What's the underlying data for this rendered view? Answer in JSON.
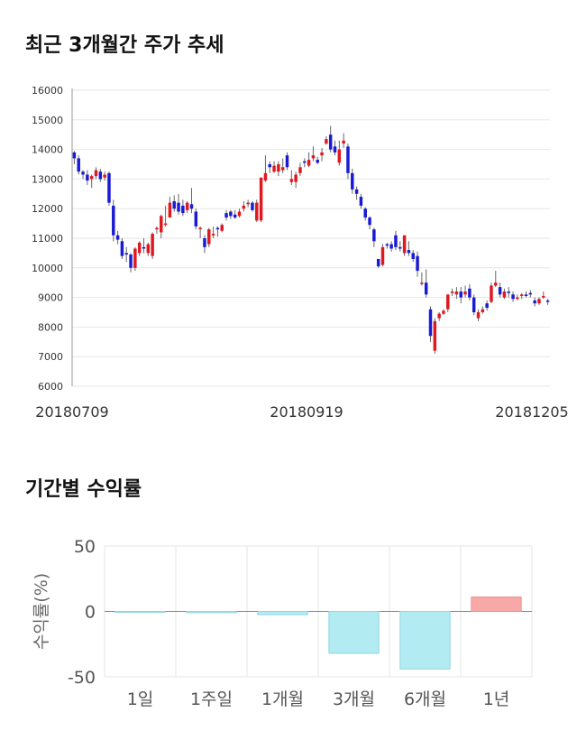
{
  "sections": {
    "price_title": "최근 3개월간 주가 추세",
    "returns_title": "기간별 수익률"
  },
  "colors": {
    "up": "#e0181f",
    "down": "#1a1ad6",
    "positive_bar": "#f9a8a8",
    "negative_bar": "#b2ebf2",
    "negative_bar_stroke": "#8fd6e3",
    "wick": "#666666",
    "grid": "#e6e6e6"
  },
  "chart_data": [
    {
      "type": "candlestick",
      "title": "최근 3개월간 주가 추세",
      "ylim": [
        6000,
        16000
      ],
      "yticks": [
        "6000",
        "7000",
        "8000",
        "9000",
        "10000",
        "11000",
        "12000",
        "13000",
        "14000",
        "15000",
        "16000"
      ],
      "xticks": [
        "20180709",
        "20180919",
        "20181205"
      ],
      "grid": true,
      "candles": [
        [
          13900,
          13950,
          13500,
          13700
        ],
        [
          13700,
          13800,
          13150,
          13250
        ],
        [
          13250,
          13300,
          13000,
          13150
        ],
        [
          13150,
          13300,
          12800,
          12950
        ],
        [
          13000,
          13150,
          12700,
          13100
        ],
        [
          13100,
          13400,
          13000,
          13300
        ],
        [
          13250,
          13350,
          12900,
          13000
        ],
        [
          13050,
          13250,
          12950,
          13150
        ],
        [
          13200,
          13250,
          12100,
          12200
        ],
        [
          12100,
          12300,
          10900,
          11100
        ],
        [
          11100,
          11250,
          10800,
          10950
        ],
        [
          10900,
          11000,
          10300,
          10400
        ],
        [
          10500,
          10700,
          10200,
          10450
        ],
        [
          10450,
          10500,
          9850,
          10000
        ],
        [
          10000,
          10700,
          9900,
          10650
        ],
        [
          10500,
          10900,
          10400,
          10850
        ],
        [
          10700,
          11000,
          10500,
          10650
        ],
        [
          10500,
          10850,
          10400,
          10800
        ],
        [
          10400,
          11200,
          10300,
          11150
        ],
        [
          11300,
          11400,
          11150,
          11350
        ],
        [
          11200,
          11800,
          11000,
          11750
        ],
        [
          11450,
          12100,
          11400,
          11500
        ],
        [
          11700,
          12400,
          11700,
          12200
        ],
        [
          12250,
          12450,
          11900,
          12000
        ],
        [
          12200,
          12500,
          11800,
          11900
        ],
        [
          12100,
          12300,
          11750,
          11850
        ],
        [
          11950,
          12250,
          11850,
          12200
        ],
        [
          12150,
          12700,
          11850,
          12000
        ],
        [
          11900,
          12000,
          11300,
          11400
        ],
        [
          11350,
          11400,
          11000,
          11350
        ],
        [
          11000,
          11100,
          10500,
          10700
        ],
        [
          10800,
          11350,
          10700,
          11300
        ],
        [
          11100,
          11400,
          11000,
          11150
        ],
        [
          11350,
          11400,
          11050,
          11300
        ],
        [
          11250,
          11500,
          11200,
          11450
        ],
        [
          11850,
          11950,
          11600,
          11700
        ],
        [
          11900,
          11950,
          11650,
          11750
        ],
        [
          11800,
          11950,
          11650,
          11700
        ],
        [
          11750,
          12000,
          11700,
          11900
        ],
        [
          12000,
          12250,
          11900,
          12100
        ],
        [
          12150,
          12300,
          12050,
          12200
        ],
        [
          12200,
          12250,
          11900,
          11950
        ],
        [
          11600,
          12300,
          11550,
          12200
        ],
        [
          11600,
          13050,
          11550,
          13050
        ],
        [
          12950,
          13800,
          12900,
          13200
        ],
        [
          13500,
          13600,
          13200,
          13400
        ],
        [
          13250,
          13600,
          13200,
          13450
        ],
        [
          13250,
          13600,
          13100,
          13500
        ],
        [
          13300,
          13700,
          13200,
          13400
        ],
        [
          13800,
          13900,
          13300,
          13400
        ],
        [
          12900,
          13300,
          12800,
          13000
        ],
        [
          12900,
          13250,
          12700,
          13150
        ],
        [
          13200,
          13550,
          13100,
          13400
        ],
        [
          13600,
          13700,
          13400,
          13550
        ],
        [
          13450,
          13900,
          13400,
          13650
        ],
        [
          13700,
          14100,
          13600,
          13800
        ],
        [
          13650,
          13750,
          13500,
          13550
        ],
        [
          13800,
          14050,
          13600,
          13900
        ],
        [
          14200,
          14450,
          14150,
          14350
        ],
        [
          14500,
          14800,
          13900,
          14000
        ],
        [
          14100,
          14300,
          13800,
          13900
        ],
        [
          13550,
          14300,
          13450,
          14000
        ],
        [
          14200,
          14550,
          14050,
          14300
        ],
        [
          14100,
          14200,
          13000,
          13200
        ],
        [
          13200,
          13350,
          12500,
          12650
        ],
        [
          12650,
          12750,
          12300,
          12500
        ],
        [
          12400,
          12500,
          12000,
          12100
        ],
        [
          12000,
          12050,
          11600,
          11700
        ],
        [
          11700,
          11750,
          11300,
          11450
        ],
        [
          11300,
          11350,
          10700,
          10900
        ],
        [
          10300,
          10300,
          10000,
          10050
        ],
        [
          10100,
          10800,
          10050,
          10700
        ],
        [
          10800,
          10850,
          10650,
          10750
        ],
        [
          10800,
          10900,
          10550,
          10650
        ],
        [
          11100,
          11250,
          10600,
          10700
        ],
        [
          10700,
          10900,
          10550,
          10650
        ],
        [
          10500,
          11100,
          10400,
          11100
        ],
        [
          10600,
          10900,
          10400,
          10500
        ],
        [
          10500,
          10600,
          10200,
          10300
        ],
        [
          10400,
          10550,
          9700,
          9900
        ],
        [
          9500,
          9850,
          9400,
          9500
        ],
        [
          9500,
          9950,
          9000,
          9100
        ],
        [
          8600,
          8700,
          7500,
          7700
        ],
        [
          7200,
          8300,
          7100,
          8200
        ],
        [
          8300,
          8500,
          8200,
          8450
        ],
        [
          8450,
          8600,
          8400,
          8550
        ],
        [
          8600,
          9100,
          8500,
          9100
        ],
        [
          9150,
          9300,
          9050,
          9200
        ],
        [
          9100,
          9350,
          8950,
          9200
        ],
        [
          9200,
          9350,
          8800,
          9000
        ],
        [
          9100,
          9400,
          9000,
          9200
        ],
        [
          9300,
          9450,
          8900,
          9000
        ],
        [
          9000,
          9100,
          8400,
          8500
        ],
        [
          8300,
          8600,
          8200,
          8500
        ],
        [
          8500,
          8700,
          8450,
          8600
        ],
        [
          8800,
          8900,
          8550,
          8650
        ],
        [
          8850,
          9500,
          8800,
          9400
        ],
        [
          9400,
          9900,
          9350,
          9500
        ],
        [
          9350,
          9500,
          9000,
          9100
        ],
        [
          9000,
          9300,
          8950,
          9200
        ],
        [
          9200,
          9350,
          9000,
          9150
        ],
        [
          9100,
          9200,
          8850,
          8950
        ],
        [
          8950,
          9100,
          8900,
          9000
        ],
        [
          9050,
          9150,
          8950,
          9100
        ],
        [
          9100,
          9200,
          9000,
          9050
        ],
        [
          9150,
          9250,
          9000,
          9100
        ],
        [
          8900,
          9000,
          8700,
          8800
        ],
        [
          8800,
          9000,
          8750,
          8950
        ],
        [
          9000,
          9200,
          8950,
          9050
        ],
        [
          8900,
          8950,
          8750,
          8850
        ]
      ]
    },
    {
      "type": "bar",
      "title": "기간별 수익률",
      "ylabel": "수익률(%)",
      "ylim": [
        -50,
        50
      ],
      "yticks": [
        "50",
        "0",
        "-50"
      ],
      "categories": [
        "1일",
        "1주일",
        "1개월",
        "3개월",
        "6개월",
        "1년"
      ],
      "values": [
        0,
        -1.0,
        -2.5,
        -32,
        -44,
        11
      ]
    }
  ]
}
